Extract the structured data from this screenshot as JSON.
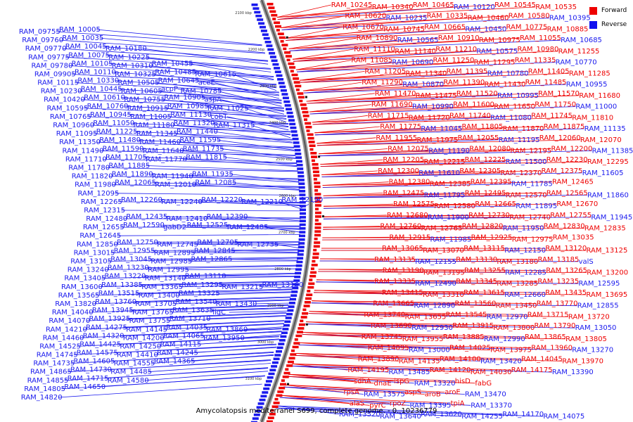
{
  "legend": {
    "forward_label": "Forward",
    "reverse_label": "Reverse",
    "forward_color": "#ee0000",
    "reverse_color": "#1010ee"
  },
  "caption": "Amycolatopsis mediterranei S699, complete genome. - 0..10236779",
  "colors": {
    "forward": "#ee0000",
    "reverse": "#1a1aee",
    "backbone": "#555555",
    "tick": "#000000"
  },
  "kbp_ticks": [
    "2100 kbp",
    "2200 kbp",
    "2300 kbp",
    "2400 kbp",
    "2500 kbp",
    "2600 kbp",
    "2700 kbp",
    "2800 kbp",
    "2900 kbp",
    "3000 kbp",
    "3100 kbp"
  ],
  "reverse_rows": [
    [
      "RAM_09755",
      "RAM_10005"
    ],
    [
      "RAM_09760",
      "RAM_10035"
    ],
    [
      "RAM_09770",
      "RAM_10045",
      "RAM_10180"
    ],
    [
      "RAM_09775",
      "RAM_10075",
      "RAM_10225"
    ],
    [
      "RAM_09780",
      "RAM_10105",
      "RAM_10310",
      "RAM_10455"
    ],
    [
      "RAM_09905",
      "RAM_10110",
      "RAM_10325",
      "RAM_10485",
      "RAM_10615"
    ],
    [
      "RAM_10115",
      "RAM_10330",
      "RAM_10505",
      "RAM_10645",
      "aceE"
    ],
    [
      "RAM_10230",
      "RAM_10445",
      "RAM_10605",
      "acpP",
      "RAM_10785"
    ],
    [
      "RAM_10420",
      "RAM_10610",
      "RAM_10755",
      "RAM_10905",
      "aspA"
    ],
    [
      "RAM_10595",
      "RAM_10760",
      "RAM_10915",
      "RAM_10985",
      "RAM_11025"
    ],
    [
      "RAM_10765",
      "RAM_10945",
      "RAM_11005",
      "RAM_11130",
      "cobT"
    ],
    [
      "RAM_10960",
      "RAM_11050",
      "RAM_11180",
      "RAM_11320",
      "RAM_11315"
    ],
    [
      "RAM_11095",
      "RAM_11225",
      "RAM_11345",
      "RAM_11440"
    ],
    [
      "RAM_11350",
      "RAM_11480",
      "RAM_11460",
      "RAM_11595"
    ],
    [
      "RAM_11490",
      "RAM_11590",
      "RAM_11640",
      "RAM_11735"
    ],
    [
      "RAM_11710",
      "RAM_11705",
      "RAM_11770",
      "RAM_11815"
    ],
    [
      "RAM_11780",
      "RAM_11885"
    ],
    [
      "RAM_11820",
      "RAM_11890",
      "RAM_11940",
      "RAM_11935"
    ],
    [
      "RAM_11980",
      "RAM_12065",
      "RAM_12010",
      "RAM_12085"
    ],
    [
      "RAM_12095"
    ],
    [
      "RAM_12265",
      "RAM_12260",
      "RAM_12240",
      "RAM_12220",
      "RAM_12210",
      "RAM_12190"
    ],
    [
      "RAM_12315"
    ],
    [
      "RAM_12480",
      "RAM_12435",
      "RAM_12410",
      "RAM_12390"
    ],
    [
      "RAM_12655",
      "RAM_12590",
      "gabD2",
      "RAM_12525",
      "RAM_12485"
    ],
    [
      "RAM_12645"
    ],
    [
      "RAM_12850",
      "RAM_12750",
      "RAM_12745",
      "RAM_12705",
      "RAM_12735"
    ],
    [
      "RAM_13015",
      "RAM_12955",
      "RAM_12895",
      "RAM_12845"
    ],
    [
      "RAM_13105",
      "RAM_13045",
      "RAM_12985",
      "RAM_12865"
    ],
    [
      "RAM_13240",
      "RAM_13230",
      "RAM_12995"
    ],
    [
      "RAM_13405",
      "RAM_13220",
      "RAM_13140",
      "RAM_13110"
    ],
    [
      "RAM_13600",
      "RAM_13385",
      "RAM_13365",
      "RAM_13295",
      "RAM_13215",
      "RAM_13160"
    ],
    [
      "RAM_13565",
      "RAM_13515",
      "RAM_13400",
      "RAM_13325"
    ],
    [
      "RAM_13820",
      "RAM_13760",
      "RAM_13705",
      "RAM_13540",
      "RAM_13430"
    ],
    [
      "RAM_14040",
      "RAM_13945",
      "RAM_13765",
      "RAM_13635",
      "ligC"
    ],
    [
      "RAM_14070",
      "RAM_13925",
      "RAM_13755",
      "RAM_13710"
    ],
    [
      "RAM_14210",
      "RAM_14275",
      "RAM_14145",
      "RAM_14035",
      "RAM_13860"
    ],
    [
      "RAM_14460",
      "RAM_14320",
      "RAM_14200",
      "RAM_14065",
      "RAM_13950"
    ],
    [
      "RAM_14525",
      "RAM_14425",
      "RAM_14250",
      "RAM_14115"
    ],
    [
      "RAM_14745",
      "RAM_14575",
      "RAM_14410",
      "RAM_14245"
    ],
    [
      "RAM_14735",
      "RAM_14605",
      "RAM_14555",
      "RAM_14365"
    ],
    [
      "RAM_14865",
      "RAM_14730",
      "RAM_14485"
    ],
    [
      "RAM_14855",
      "RAM_14715",
      "RAM_14580"
    ],
    [
      "RAM_14805",
      "RAM_14650"
    ],
    [
      "RAM_14820"
    ]
  ],
  "forward_genes": [
    "RAM_10245",
    "RAM_10340",
    "RAM_10465",
    "RAM_10545",
    "RAM_10535",
    "RAM_10620",
    "RAM_10335",
    "RAM_10460",
    "RAM_10580",
    "RAM_10670",
    "RAM_10745",
    "RAM_10665",
    "RAM_10775",
    "RAM_10885",
    "RAM_10890",
    "RAM_10910",
    "RAM_10975",
    "RAM_11055",
    "RAM_11110",
    "RAM_11140",
    "RAM_11210",
    "RAM_10980",
    "RAM_11255",
    "RAM_11085",
    "RAM_11250",
    "RAM_11295",
    "RAM_11335",
    "RAM_11205",
    "RAM_11340",
    "RAM_11395",
    "RAM_11405",
    "RAM_11285",
    "RAM_11290",
    "RAM_11390",
    "RAM_11430",
    "RAM_11485",
    "RAM_11470",
    "RAM_11475",
    "RAM_11520",
    "RAM_11570",
    "RAM_11680",
    "RAM_11690",
    "RAM_11600",
    "RAM_11650",
    "RAM_11750",
    "RAM_11715",
    "RAM_11720",
    "RAM_11740",
    "RAM_11745",
    "RAM_11810",
    "RAM_11775",
    "RAM_11805",
    "RAM_11870",
    "RAM_11875",
    "RAM_11955",
    "RAM_11975",
    "RAM_12055",
    "RAM_12060",
    "RAM_12070",
    "RAM_12075",
    "RAM_12080",
    "RAM_12195",
    "RAM_12200",
    "RAM_12205",
    "RAM_12215",
    "RAM_12225",
    "RAM_12230",
    "RAM_12295",
    "RAM_12300",
    "RAM_12305",
    "RAM_12370",
    "RAM_12375",
    "RAM_12380",
    "RAM_12385",
    "RAM_12395",
    "RAM_12465",
    "RAM_12470",
    "RAM_12475",
    "RAM_12495",
    "RAM_12570",
    "RAM_12565",
    "RAM_12575",
    "RAM_12580",
    "RAM_12665",
    "RAM_12670",
    "RAM_12675",
    "RAM_12680",
    "RAM_12730",
    "RAM_12740",
    "RAM_12755",
    "RAM_12760",
    "RAM_12765",
    "RAM_12820",
    "RAM_12830",
    "RAM_12835",
    "RAM_12915",
    "RAM_12925",
    "RAM_12975",
    "RAM_13035",
    "RAM_13065",
    "RAM_13070",
    "RAM_13115",
    "RAM_13120",
    "RAM_13125",
    "RAM_13135",
    "RAM_13130",
    "RAM_13180",
    "RAM_13185",
    "RAM_13190",
    "RAM_13195",
    "RAM_13255",
    "RAM_13265",
    "RAM_13200",
    "RAM_13335",
    "RAM_13345",
    "RAM_13285",
    "RAM_13235",
    "RAM_13415",
    "RAM_13310",
    "RAM_13615",
    "RAM_13435",
    "RAM_13695",
    "RAM_13665",
    "RAM_13560",
    "RAM_13450",
    "RAM_13770",
    "RAM_13740",
    "RAM_13655",
    "RAM_13545",
    "RAM_13715",
    "RAM_13720",
    "RAM_13690",
    "RAM_13915",
    "RAM_13800",
    "RAM_13790",
    "RAM_13745",
    "RAM_13955",
    "RAM_13885",
    "RAM_13865",
    "RAM_13805",
    "RAM_14095",
    "RAM_14025",
    "RAM_13975",
    "RAM_13960",
    "RAM_13890",
    "RAM_14135",
    "RAM_14100",
    "RAM_14045",
    "RAM_13970",
    "RAM_14195",
    "RAM_14120",
    "RAM_14030",
    "RAM_14175",
    "sdhA",
    "dnaE",
    "ispG",
    "hisD",
    "fabG",
    "rpsA",
    "aspS",
    "aroB",
    "aroE",
    "alaS",
    "pyrC",
    "rpoZ",
    "tpiA"
  ],
  "right_blue_genes": [
    "RAM_10120",
    "RAM_10235",
    "RAM_10395",
    "RAM_10450",
    "RAM_10565",
    "RAM_10685",
    "RAM_10575",
    "RAM_10690",
    "RAM_10770",
    "RAM_10780",
    "RAM_10870",
    "RAM_10955",
    "RAM_10995",
    "RAM_10990",
    "RAM_11000",
    "RAM_11080",
    "RAM_11045",
    "RAM_11135",
    "RAM_11195",
    "RAM_11190",
    "RAM_11385",
    "RAM_11500",
    "RAM_11610",
    "RAM_11605",
    "RAM_11785",
    "RAM_11795",
    "RAM_11860",
    "RAM_11895",
    "RAM_11900",
    "RAM_11945",
    "RAM_11950",
    "RAM_11985",
    "RAM_12145",
    "RAM_12150",
    "RAM_12155",
    "valS",
    "RAM_12285",
    "RAM_12490",
    "RAM_12595",
    "RAM_12660",
    "RAM_12890",
    "RAM_12855",
    "RAM_12970",
    "RAM_12930",
    "RAM_13050",
    "RAM_12990",
    "RAM_13000",
    "RAM_13270",
    "RAM_13420",
    "RAM_13485",
    "RAM_13390",
    "RAM_13320",
    "RAM_13575",
    "RAM_13470",
    "RAM_13395",
    "RAM_13370",
    "RAM_13520",
    "RAM_13640",
    "RAM_13620",
    "RAM_14255",
    "RAM_14170",
    "RAM_14075"
  ]
}
